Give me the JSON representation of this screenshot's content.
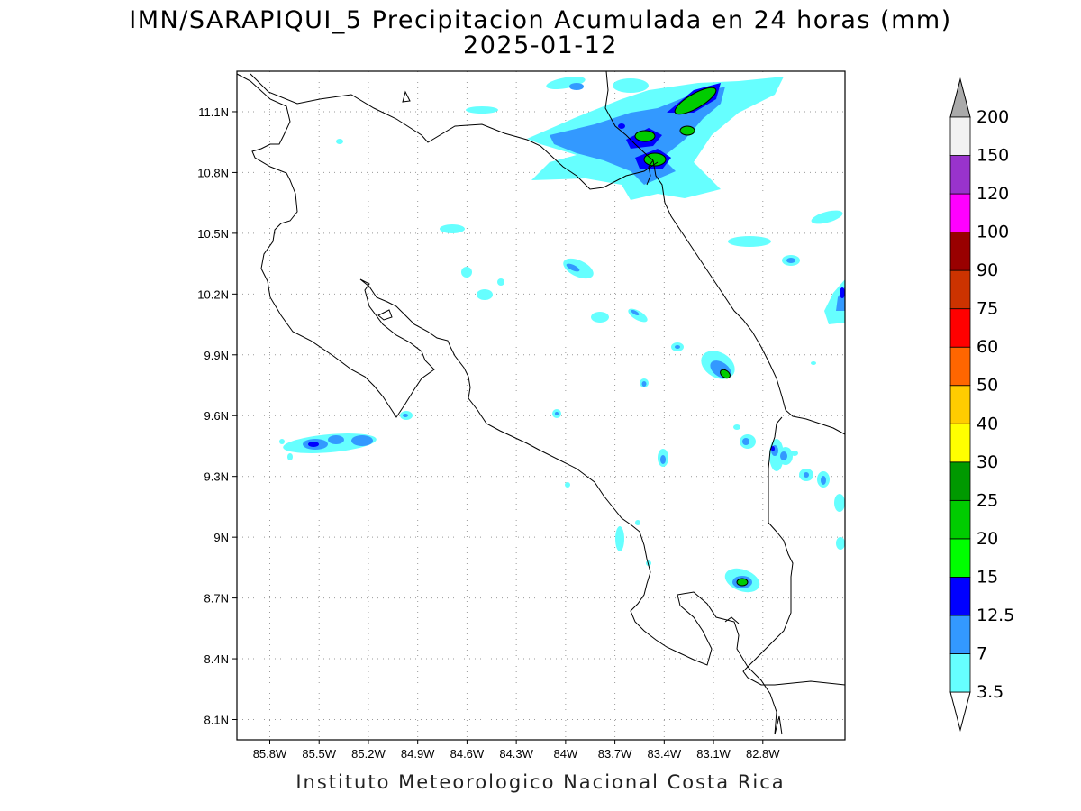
{
  "title": {
    "line1": "IMN/SARAPIQUI_5 Precipitacion Acumulada en 24 horas (mm)",
    "line2": "2025-01-12"
  },
  "footer": "Instituto Meteorologico Nacional Costa Rica",
  "map": {
    "lon_range": [
      -86.0,
      -82.3
    ],
    "lat_range": [
      8.0,
      11.3
    ],
    "lon_ticks": [
      "85.8W",
      "85.5W",
      "85.2W",
      "84.9W",
      "84.6W",
      "84.3W",
      "84W",
      "83.7W",
      "83.4W",
      "83.1W",
      "82.8W"
    ],
    "lon_tick_values": [
      -85.8,
      -85.5,
      -85.2,
      -84.9,
      -84.6,
      -84.3,
      -84.0,
      -83.7,
      -83.4,
      -83.1,
      -82.8
    ],
    "lat_ticks": [
      "11.1N",
      "10.8N",
      "10.5N",
      "10.2N",
      "9.9N",
      "9.6N",
      "9.3N",
      "9N",
      "8.7N",
      "8.4N",
      "8.1N"
    ],
    "lat_tick_values": [
      11.1,
      10.8,
      10.5,
      10.2,
      9.9,
      9.6,
      9.3,
      9.0,
      8.7,
      8.4,
      8.1
    ],
    "grid": "dotted"
  },
  "colorbar": {
    "labels": [
      "3.5",
      "7",
      "12.5",
      "15",
      "20",
      "25",
      "30",
      "40",
      "50",
      "60",
      "75",
      "90",
      "100",
      "120",
      "150",
      "200"
    ],
    "colors": [
      "#66ffff",
      "#3399ff",
      "#0000ff",
      "#00ff00",
      "#00cc00",
      "#009900",
      "#ffff00",
      "#ffcc00",
      "#ff6600",
      "#ff0000",
      "#cc3300",
      "#990000",
      "#ff00ff",
      "#9933cc",
      "#f2f2f2",
      "#aaaaaa"
    ]
  },
  "chart_data": {
    "type": "heatmap",
    "units": "mm",
    "precip_areas": [
      {
        "lon": -83.45,
        "lat": 11.05,
        "max_mm": 20
      },
      {
        "lon": -83.55,
        "lat": 10.88,
        "max_mm": 20
      },
      {
        "lon": -83.68,
        "lat": 10.99,
        "max_mm": 20
      },
      {
        "lon": -83.35,
        "lat": 11.0,
        "max_mm": 20
      },
      {
        "lon": -83.17,
        "lat": 9.8,
        "max_mm": 20
      },
      {
        "lon": -83.08,
        "lat": 8.78,
        "max_mm": 20
      },
      {
        "lon": -85.45,
        "lat": 9.45,
        "max_mm": 12.5
      },
      {
        "lon": -82.33,
        "lat": 10.2,
        "max_mm": 12.5
      }
    ]
  }
}
